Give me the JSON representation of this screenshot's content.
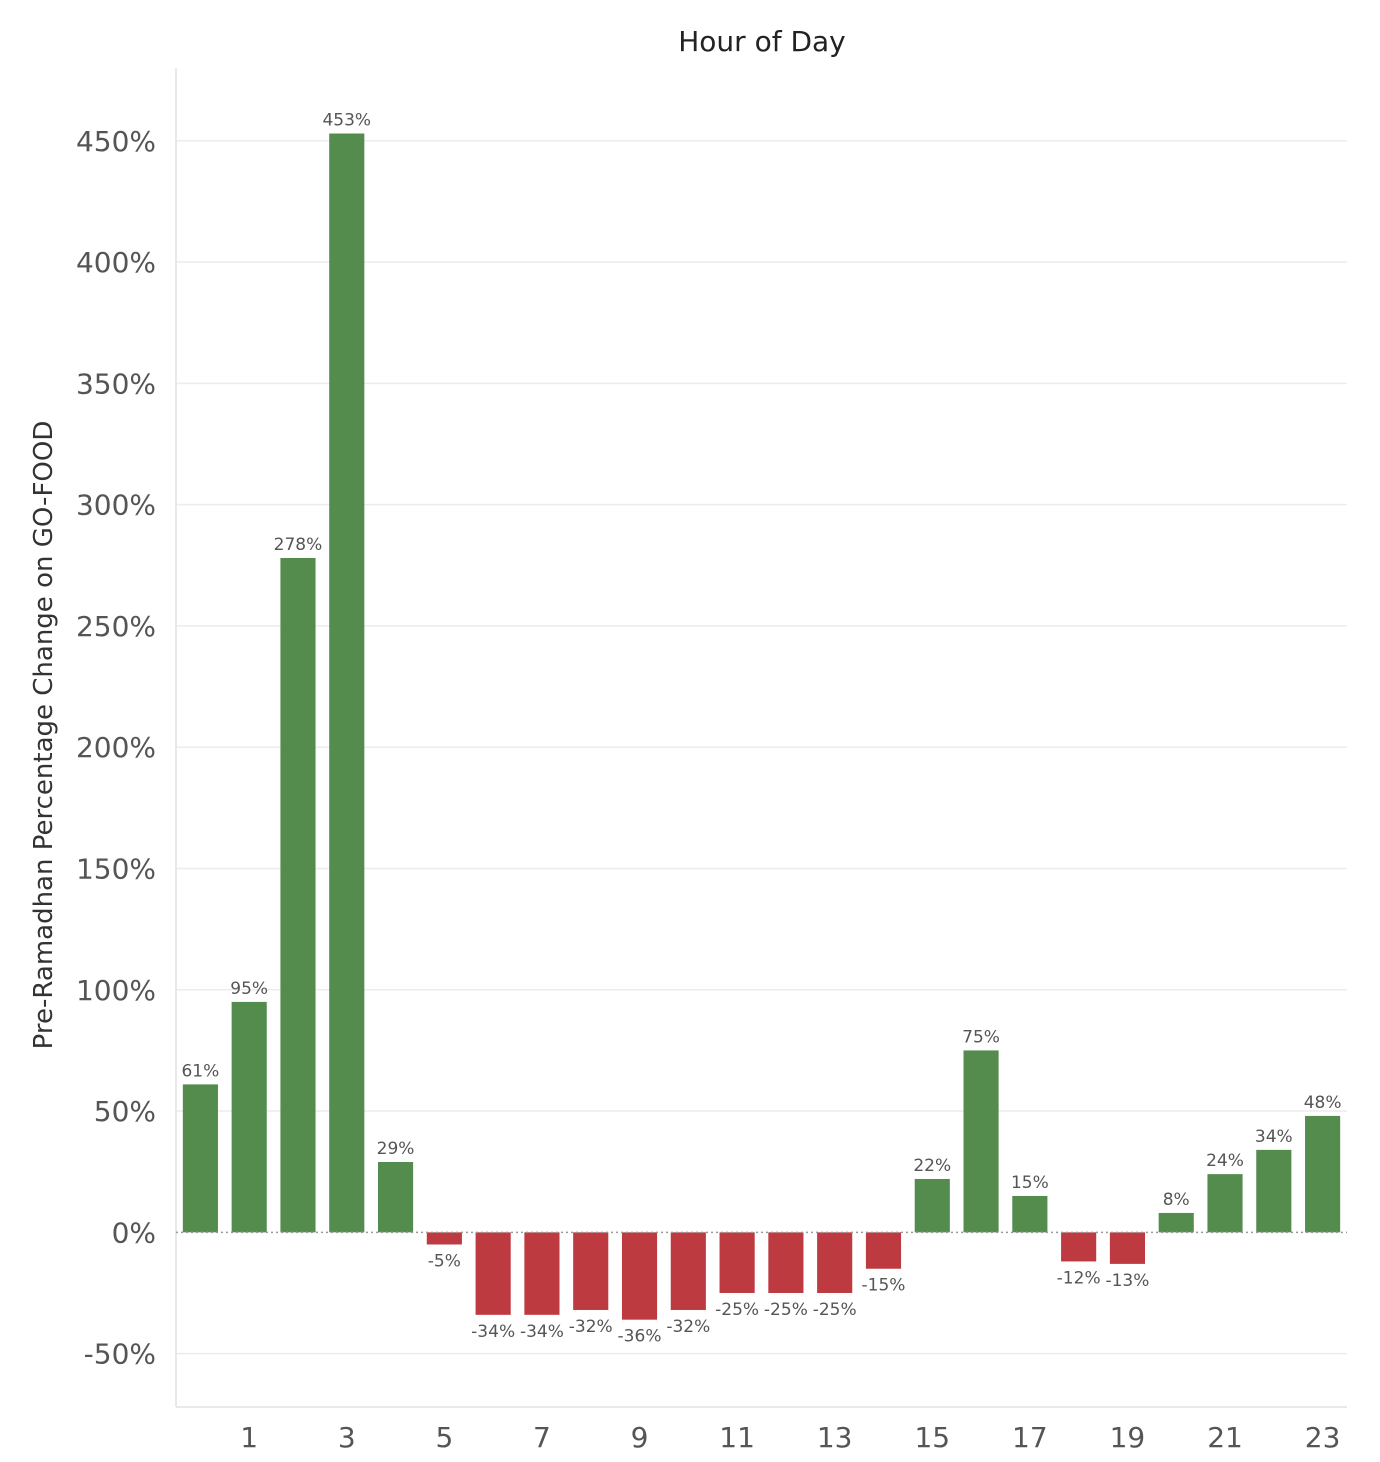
{
  "chart_data": {
    "type": "bar",
    "title": "Hour of Day",
    "xlabel": "",
    "ylabel": "Pre-Ramadhan Percentage Change on GO-FOOD",
    "categories": [
      0,
      1,
      2,
      3,
      4,
      5,
      6,
      7,
      8,
      9,
      10,
      11,
      12,
      13,
      14,
      15,
      16,
      17,
      18,
      19,
      20,
      21,
      22,
      23
    ],
    "values": [
      61,
      95,
      278,
      453,
      29,
      -5,
      -34,
      -34,
      -32,
      -36,
      -32,
      -25,
      -25,
      -25,
      -15,
      22,
      75,
      15,
      -12,
      -13,
      8,
      24,
      34,
      48
    ],
    "data_labels": [
      "61%",
      "95%",
      "278%",
      "453%",
      "29%",
      "-5%",
      "-34%",
      "-34%",
      "-32%",
      "-36%",
      "-32%",
      "-25%",
      "-25%",
      "-25%",
      "-15%",
      "22%",
      "75%",
      "15%",
      "-12%",
      "-13%",
      "8%",
      "24%",
      "34%",
      "48%"
    ],
    "x_ticks": [
      "1",
      "3",
      "5",
      "7",
      "9",
      "11",
      "13",
      "15",
      "17",
      "19",
      "21",
      "23"
    ],
    "y_ticks": [
      -50,
      0,
      50,
      100,
      150,
      200,
      250,
      300,
      350,
      400,
      450
    ],
    "y_tick_labels": [
      "-50%",
      "0%",
      "50%",
      "100%",
      "150%",
      "200%",
      "250%",
      "300%",
      "350%",
      "400%",
      "450%"
    ],
    "ylim": [
      -72,
      480
    ],
    "grid": true,
    "legend": "none",
    "colors": {
      "positive": "#548c4e",
      "negative": "#bd3a41"
    }
  }
}
